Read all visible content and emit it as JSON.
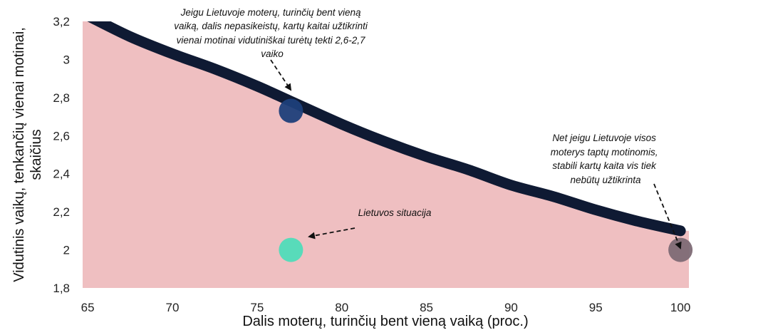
{
  "chart_data": {
    "type": "area",
    "xlabel": "Dalis moterų, turinčių bent vieną vaiką (proc.)",
    "ylabel": [
      "Vidutinis vaikų, tenkančių vienai motinai,",
      "skaičius"
    ],
    "xlim": [
      64.7,
      100.5
    ],
    "ylim": [
      1.8,
      3.2
    ],
    "x_ticks": [
      65,
      70,
      75,
      80,
      85,
      90,
      95,
      100
    ],
    "x_tick_labels": [
      "65",
      "70",
      "75",
      "80",
      "85",
      "90",
      "95",
      "100"
    ],
    "y_ticks": [
      1.8,
      2.0,
      2.2,
      2.4,
      2.6,
      2.8,
      3.0,
      3.2
    ],
    "y_tick_labels": [
      "1,8",
      "2",
      "2,2",
      "2,4",
      "2,6",
      "2,8",
      "3",
      "3,2"
    ],
    "grid": false,
    "series": [
      {
        "x": [
          65,
          67.5,
          70,
          72.5,
          75,
          77,
          80,
          82.5,
          85,
          87.5,
          90,
          92.5,
          95,
          97.5,
          100
        ],
        "y": [
          3.23,
          3.12,
          3.03,
          2.95,
          2.86,
          2.78,
          2.66,
          2.57,
          2.49,
          2.42,
          2.34,
          2.28,
          2.21,
          2.15,
          2.1
        ],
        "line_color": "#0f1a33",
        "fill_color": "#efbfc1"
      }
    ],
    "points": [
      {
        "x": 77,
        "y": 2.73,
        "color": "#1d3f7a"
      },
      {
        "x": 77,
        "y": 2.0,
        "color": "#4fdcb9"
      },
      {
        "x": 100,
        "y": 2.0,
        "color": "#7d6a75"
      }
    ],
    "annotations": [
      {
        "lines": [
          "Jeigu Lietuvoje moterų, turinčių bent vieną",
          "vaiką, dalis nepasikeistų, kartų kaitai užtikrinti",
          "vienai motinai vidutiniškai turėtų tekti 2,6-2,7",
          "vaiko"
        ]
      },
      {
        "lines": [
          "Lietuvos situacija"
        ]
      },
      {
        "lines": [
          "Net jeigu Lietuvoje visos",
          "moterys taptų motinomis,",
          "stabili kartų kaita vis tiek",
          "nebūtų užtikrinta"
        ]
      }
    ]
  }
}
